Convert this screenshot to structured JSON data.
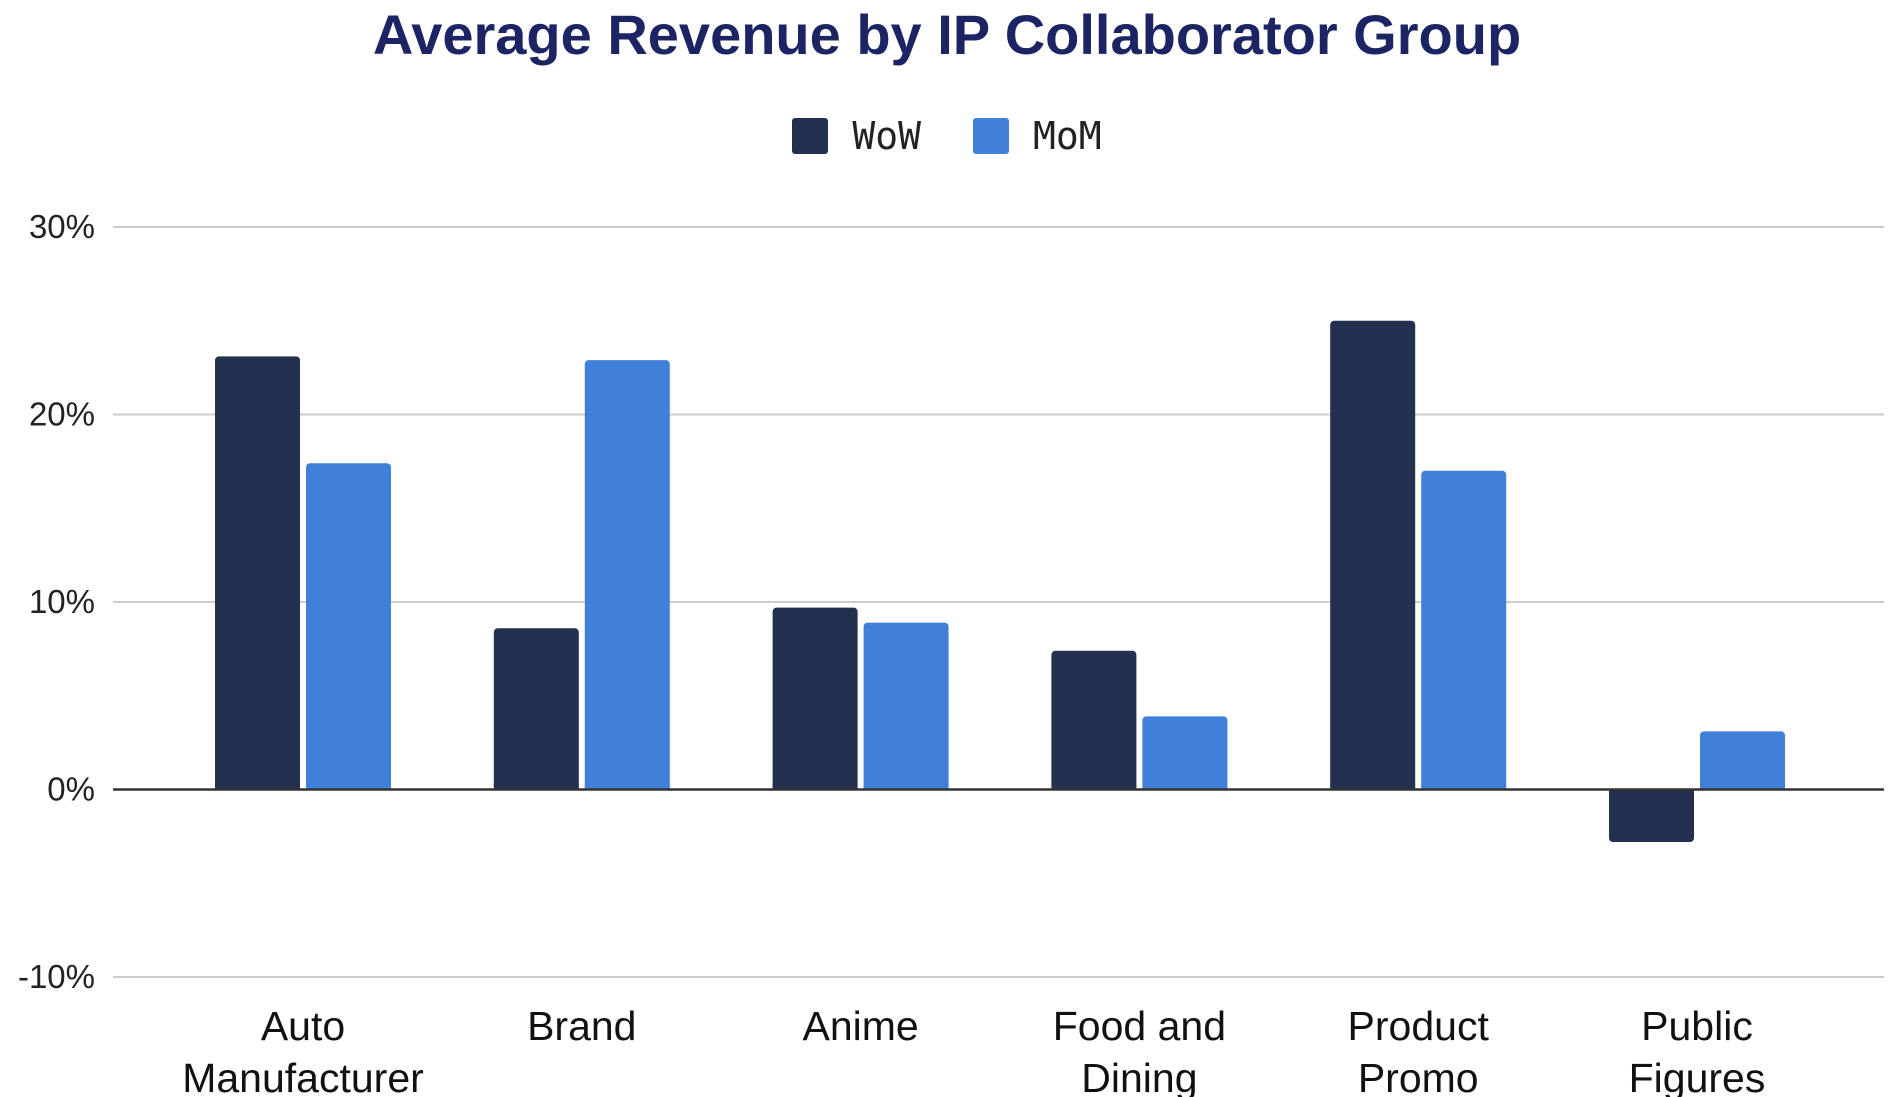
{
  "chart_data": {
    "type": "bar",
    "title": "Average Revenue by IP Collaborator Group",
    "xlabel": "",
    "ylabel": "",
    "categories": [
      [
        "Auto",
        "Manufacturer"
      ],
      [
        "Brand"
      ],
      [
        "Anime"
      ],
      [
        "Food and",
        "Dining"
      ],
      [
        "Product",
        "Promo"
      ],
      [
        "Public",
        "Figures"
      ]
    ],
    "series": [
      {
        "name": "WoW",
        "color": "#24304f",
        "values": [
          23.1,
          8.6,
          9.7,
          7.4,
          25.0,
          -2.8
        ]
      },
      {
        "name": "MoM",
        "color": "#4080d8",
        "values": [
          17.4,
          22.9,
          8.9,
          3.9,
          17.0,
          3.1
        ]
      }
    ],
    "yticks": [
      30,
      20,
      10,
      0,
      -10
    ],
    "ytick_labels": [
      "30%",
      "20%",
      "10%",
      "0%",
      "-10%"
    ],
    "ylim": [
      -10,
      30
    ],
    "value_unit": "%",
    "grid": true,
    "legend_position": "top-center"
  }
}
